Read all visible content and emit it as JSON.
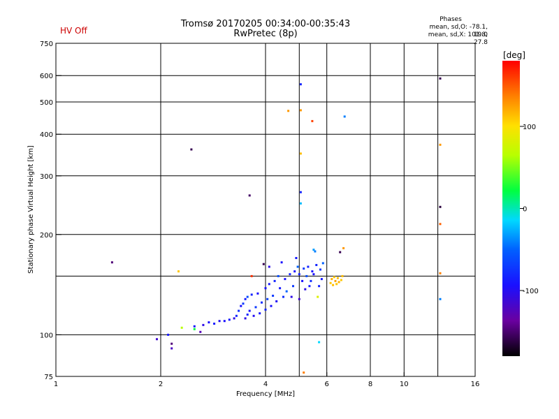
{
  "status": {
    "hv_label": "HV Off"
  },
  "header": {
    "title_line1": "Tromsø 20170205 00:34:00-00:35:43",
    "title_line2": "RwPretec (8p)"
  },
  "phase_box": {
    "heading": "Phases",
    "line1": "mean, sd,O: -78.1, 19.0",
    "line2": "mean, sd,X: 101.8, 27.8"
  },
  "colorbar": {
    "unit_label": "[deg]",
    "range": [
      -180,
      180
    ],
    "ticks": [
      {
        "value": 100,
        "label": "100"
      },
      {
        "value": 0,
        "label": "0"
      },
      {
        "value": -100,
        "label": "-100"
      }
    ]
  },
  "chart_data": {
    "type": "scatter",
    "title": "Tromsø 20170205 00:34:00-00:35:43",
    "subtitle": "RwPretec (8p)",
    "xlabel": "Frequency [MHz]",
    "ylabel": "Stationary phase Virtual Height [km]",
    "x_scale": "log",
    "y_scale": "log",
    "xlim": [
      1,
      16
    ],
    "ylim": [
      75,
      750
    ],
    "x_ticks": [
      {
        "value": 1,
        "label": "1"
      },
      {
        "value": 2,
        "label": "2"
      },
      {
        "value": 4,
        "label": "4"
      },
      {
        "value": 6,
        "label": "6"
      },
      {
        "value": 8,
        "label": "8"
      },
      {
        "value": 10,
        "label": "10"
      },
      {
        "value": 16,
        "label": "16"
      }
    ],
    "x_gridlines": [
      2,
      4,
      5,
      6,
      8,
      10,
      12.5
    ],
    "y_ticks": [
      {
        "value": 75,
        "label": "75"
      },
      {
        "value": 100,
        "label": "100"
      },
      {
        "value": 200,
        "label": "200"
      },
      {
        "value": 300,
        "label": "300"
      },
      {
        "value": 400,
        "label": "400"
      },
      {
        "value": 500,
        "label": "500"
      },
      {
        "value": 600,
        "label": "600"
      },
      {
        "value": 750,
        "label": "750"
      }
    ],
    "y_gridlines": [
      100,
      150,
      200,
      300,
      400,
      500,
      600,
      750
    ],
    "grid": true,
    "color_dimension": "phase [deg]",
    "points": [
      {
        "f": 1.45,
        "h": 165,
        "p": -150
      },
      {
        "f": 1.95,
        "h": 97,
        "p": -120
      },
      {
        "f": 2.1,
        "h": 100,
        "p": -95
      },
      {
        "f": 2.15,
        "h": 94,
        "p": -150
      },
      {
        "f": 2.15,
        "h": 91,
        "p": -125
      },
      {
        "f": 2.25,
        "h": 155,
        "p": 110
      },
      {
        "f": 2.3,
        "h": 105,
        "p": 60
      },
      {
        "f": 2.45,
        "h": 360,
        "p": -160
      },
      {
        "f": 2.5,
        "h": 104,
        "p": 20
      },
      {
        "f": 2.5,
        "h": 106,
        "p": -100
      },
      {
        "f": 2.6,
        "h": 102,
        "p": -130
      },
      {
        "f": 2.65,
        "h": 107,
        "p": -110
      },
      {
        "f": 2.75,
        "h": 109,
        "p": -100
      },
      {
        "f": 2.85,
        "h": 108,
        "p": -95
      },
      {
        "f": 2.95,
        "h": 110,
        "p": -105
      },
      {
        "f": 3.05,
        "h": 110,
        "p": -100
      },
      {
        "f": 3.15,
        "h": 111,
        "p": -95
      },
      {
        "f": 3.25,
        "h": 112,
        "p": -110
      },
      {
        "f": 3.3,
        "h": 114,
        "p": -90
      },
      {
        "f": 3.35,
        "h": 118,
        "p": -85
      },
      {
        "f": 3.4,
        "h": 122,
        "p": -100
      },
      {
        "f": 3.45,
        "h": 124,
        "p": -80
      },
      {
        "f": 3.5,
        "h": 112,
        "p": -110
      },
      {
        "f": 3.5,
        "h": 128,
        "p": -95
      },
      {
        "f": 3.55,
        "h": 115,
        "p": -90
      },
      {
        "f": 3.55,
        "h": 130,
        "p": -70
      },
      {
        "f": 3.6,
        "h": 118,
        "p": -100
      },
      {
        "f": 3.6,
        "h": 262,
        "p": -155
      },
      {
        "f": 3.65,
        "h": 132,
        "p": -90
      },
      {
        "f": 3.65,
        "h": 150,
        "p": 165
      },
      {
        "f": 3.7,
        "h": 114,
        "p": -105
      },
      {
        "f": 3.75,
        "h": 121,
        "p": -80
      },
      {
        "f": 3.8,
        "h": 133,
        "p": -100
      },
      {
        "f": 3.85,
        "h": 116,
        "p": -95
      },
      {
        "f": 3.9,
        "h": 125,
        "p": -85
      },
      {
        "f": 3.95,
        "h": 163,
        "p": -160
      },
      {
        "f": 4.0,
        "h": 119,
        "p": -90
      },
      {
        "f": 4.0,
        "h": 138,
        "p": -100
      },
      {
        "f": 4.05,
        "h": 128,
        "p": -75
      },
      {
        "f": 4.1,
        "h": 142,
        "p": -95
      },
      {
        "f": 4.1,
        "h": 160,
        "p": -110
      },
      {
        "f": 4.15,
        "h": 122,
        "p": -100
      },
      {
        "f": 4.2,
        "h": 131,
        "p": -80
      },
      {
        "f": 4.25,
        "h": 145,
        "p": -90
      },
      {
        "f": 4.3,
        "h": 126,
        "p": -105
      },
      {
        "f": 4.35,
        "h": 150,
        "p": -70
      },
      {
        "f": 4.4,
        "h": 138,
        "p": -95
      },
      {
        "f": 4.45,
        "h": 165,
        "p": -100
      },
      {
        "f": 4.5,
        "h": 130,
        "p": -85
      },
      {
        "f": 4.55,
        "h": 147,
        "p": -100
      },
      {
        "f": 4.6,
        "h": 135,
        "p": -60
      },
      {
        "f": 4.65,
        "h": 470,
        "p": 130
      },
      {
        "f": 4.7,
        "h": 152,
        "p": -90
      },
      {
        "f": 4.75,
        "h": 130,
        "p": -110
      },
      {
        "f": 4.8,
        "h": 140,
        "p": -80
      },
      {
        "f": 4.85,
        "h": 155,
        "p": -100
      },
      {
        "f": 4.9,
        "h": 170,
        "p": -95
      },
      {
        "f": 4.95,
        "h": 160,
        "p": -60
      },
      {
        "f": 5.0,
        "h": 128,
        "p": -120
      },
      {
        "f": 5.0,
        "h": 152,
        "p": -90
      },
      {
        "f": 5.05,
        "h": 565,
        "p": -90
      },
      {
        "f": 5.05,
        "h": 472,
        "p": 130
      },
      {
        "f": 5.05,
        "h": 350,
        "p": 115
      },
      {
        "f": 5.05,
        "h": 268,
        "p": -90
      },
      {
        "f": 5.05,
        "h": 248,
        "p": -30
      },
      {
        "f": 5.1,
        "h": 145,
        "p": -100
      },
      {
        "f": 5.15,
        "h": 158,
        "p": -80
      },
      {
        "f": 5.15,
        "h": 77,
        "p": 140
      },
      {
        "f": 5.2,
        "h": 137,
        "p": -110
      },
      {
        "f": 5.25,
        "h": 150,
        "p": -70
      },
      {
        "f": 5.3,
        "h": 160,
        "p": -90
      },
      {
        "f": 5.35,
        "h": 140,
        "p": -95
      },
      {
        "f": 5.4,
        "h": 145,
        "p": -85
      },
      {
        "f": 5.45,
        "h": 438,
        "p": 160
      },
      {
        "f": 5.45,
        "h": 155,
        "p": -100
      },
      {
        "f": 5.5,
        "h": 180,
        "p": -40
      },
      {
        "f": 5.5,
        "h": 152,
        "p": -100
      },
      {
        "f": 5.55,
        "h": 178,
        "p": -50
      },
      {
        "f": 5.6,
        "h": 162,
        "p": -90
      },
      {
        "f": 5.65,
        "h": 130,
        "p": 80
      },
      {
        "f": 5.7,
        "h": 140,
        "p": -90
      },
      {
        "f": 5.75,
        "h": 157,
        "p": -80
      },
      {
        "f": 5.8,
        "h": 147,
        "p": -95
      },
      {
        "f": 5.85,
        "h": 164,
        "p": -60
      },
      {
        "f": 5.7,
        "h": 95,
        "p": -20
      },
      {
        "f": 6.15,
        "h": 143,
        "p": 110
      },
      {
        "f": 6.2,
        "h": 147,
        "p": 120
      },
      {
        "f": 6.25,
        "h": 141,
        "p": 115
      },
      {
        "f": 6.3,
        "h": 149,
        "p": 110
      },
      {
        "f": 6.35,
        "h": 145,
        "p": 125
      },
      {
        "f": 6.4,
        "h": 142,
        "p": 110
      },
      {
        "f": 6.45,
        "h": 148,
        "p": 115
      },
      {
        "f": 6.5,
        "h": 144,
        "p": 120
      },
      {
        "f": 6.55,
        "h": 177,
        "p": -160
      },
      {
        "f": 6.6,
        "h": 146,
        "p": 110
      },
      {
        "f": 6.65,
        "h": 150,
        "p": 115
      },
      {
        "f": 6.7,
        "h": 182,
        "p": 130
      },
      {
        "f": 6.75,
        "h": 452,
        "p": -50
      },
      {
        "f": 12.7,
        "h": 588,
        "p": -160
      },
      {
        "f": 12.7,
        "h": 372,
        "p": 130
      },
      {
        "f": 12.7,
        "h": 242,
        "p": -165
      },
      {
        "f": 12.7,
        "h": 215,
        "p": 150
      },
      {
        "f": 12.7,
        "h": 153,
        "p": 140
      },
      {
        "f": 12.7,
        "h": 128,
        "p": -50
      }
    ]
  }
}
